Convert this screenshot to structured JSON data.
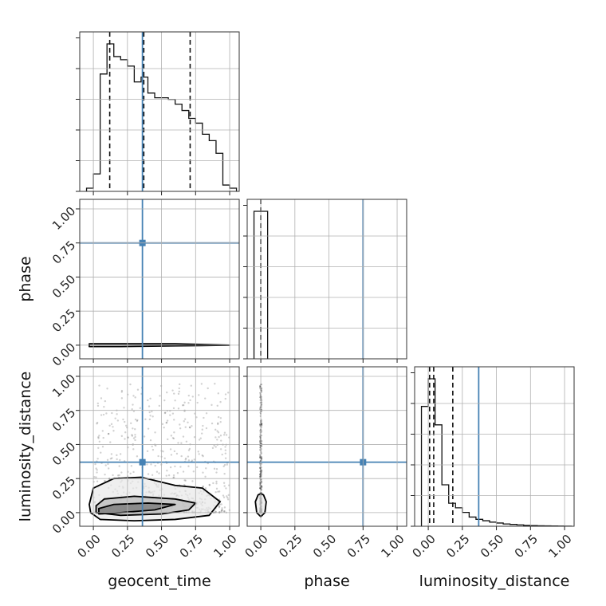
{
  "chart_data": {
    "type": "corner",
    "parameters": [
      "geocent_time",
      "phase",
      "luminosity_distance"
    ],
    "axis_labels": {
      "geocent_time": "geocent_time",
      "phase": "phase",
      "luminosity_distance": "luminosity_distance"
    },
    "tick_values": [
      0.0,
      0.25,
      0.5,
      0.75,
      1.0
    ],
    "tick_labels": [
      "0.00",
      "0.25",
      "0.50",
      "0.75",
      "1.00"
    ],
    "range": [
      -0.1,
      1.07
    ],
    "grid": true,
    "truths": {
      "geocent_time": 0.36,
      "phase": 0.75,
      "luminosity_distance": 0.37
    },
    "truth_color": "#4682b4",
    "quantile_lines": {
      "geocent_time": [
        0.12,
        0.37,
        0.71
      ],
      "phase": [
        0.0
      ],
      "luminosity_distance": [
        0.01,
        0.04,
        0.18
      ]
    },
    "histograms": {
      "geocent_time": {
        "bin_edges": [
          -0.05,
          0.0,
          0.05,
          0.1,
          0.15,
          0.2,
          0.25,
          0.3,
          0.35,
          0.4,
          0.45,
          0.5,
          0.55,
          0.6,
          0.65,
          0.7,
          0.75,
          0.8,
          0.85,
          0.9,
          0.95,
          1.0,
          1.05
        ],
        "counts": [
          0.02,
          0.11,
          0.74,
          0.93,
          0.85,
          0.83,
          0.79,
          0.69,
          0.72,
          0.62,
          0.59,
          0.59,
          0.58,
          0.55,
          0.51,
          0.46,
          0.43,
          0.36,
          0.32,
          0.24,
          0.04,
          0.02
        ]
      },
      "phase": {
        "bin_edges": [
          -0.05,
          0.0,
          0.05
        ],
        "counts": [
          0.5,
          0.5
        ]
      },
      "luminosity_distance": {
        "bin_edges": [
          -0.05,
          0.0,
          0.05,
          0.1,
          0.15,
          0.2,
          0.25,
          0.3,
          0.35,
          0.4,
          0.45,
          0.5,
          0.55,
          0.6,
          0.65,
          0.7,
          0.75,
          0.8,
          0.85,
          0.9,
          0.95,
          1.0,
          1.05
        ],
        "counts": [
          0.26,
          0.32,
          0.22,
          0.09,
          0.05,
          0.04,
          0.03,
          0.02,
          0.015,
          0.012,
          0.009,
          0.007,
          0.005,
          0.004,
          0.003,
          0.002,
          0.0015,
          0.001,
          0.0008,
          0.0005,
          0.0003,
          0.0001
        ]
      }
    },
    "scatter": {
      "geocent_time_vs_luminosity_distance": {
        "contours": [
          [
            [
              -0.02,
              0.0
            ],
            [
              0.05,
              -0.05
            ],
            [
              0.3,
              -0.06
            ],
            [
              0.6,
              -0.05
            ],
            [
              0.85,
              -0.02
            ],
            [
              0.93,
              0.08
            ],
            [
              0.8,
              0.18
            ],
            [
              0.6,
              0.2
            ],
            [
              0.35,
              0.26
            ],
            [
              0.15,
              0.25
            ],
            [
              0.0,
              0.18
            ],
            [
              -0.03,
              0.06
            ]
          ],
          [
            [
              0.02,
              0.0
            ],
            [
              0.2,
              -0.02
            ],
            [
              0.5,
              -0.01
            ],
            [
              0.7,
              0.02
            ],
            [
              0.75,
              0.07
            ],
            [
              0.6,
              0.1
            ],
            [
              0.3,
              0.12
            ],
            [
              0.08,
              0.1
            ],
            [
              0.02,
              0.05
            ]
          ],
          [
            [
              0.04,
              -0.01
            ],
            [
              0.2,
              0.0
            ],
            [
              0.45,
              0.02
            ],
            [
              0.6,
              0.06
            ],
            [
              0.4,
              0.07
            ],
            [
              0.15,
              0.06
            ],
            [
              0.04,
              0.03
            ]
          ]
        ]
      },
      "geocent_time_vs_phase": {
        "contours": [
          [
            [
              -0.03,
              -0.01
            ],
            [
              0.2,
              -0.01
            ],
            [
              0.6,
              -0.005
            ],
            [
              1.0,
              0.0
            ],
            [
              0.6,
              0.01
            ],
            [
              0.2,
              0.01
            ],
            [
              -0.03,
              0.01
            ]
          ]
        ]
      },
      "phase_vs_luminosity_distance": {
        "contours": [
          [
            [
              0.0,
              -0.03
            ],
            [
              0.03,
              0.0
            ],
            [
              0.04,
              0.08
            ],
            [
              0.02,
              0.13
            ],
            [
              0.0,
              0.14
            ],
            [
              -0.02,
              0.13
            ],
            [
              -0.04,
              0.08
            ],
            [
              -0.03,
              0.0
            ]
          ]
        ]
      }
    }
  }
}
